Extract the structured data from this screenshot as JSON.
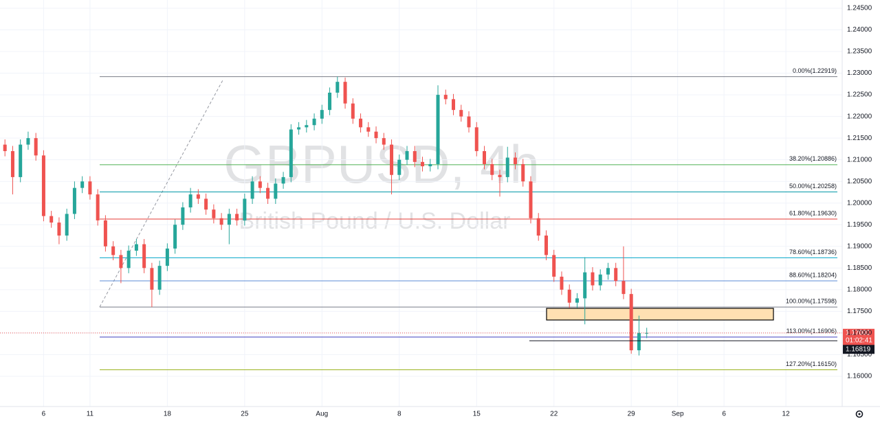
{
  "chart_data": {
    "type": "candlestick",
    "watermark": "GBPUSD, 4h",
    "description": "British Pound / U.S. Dollar",
    "up_color": "#26a69a",
    "down_color": "#ef5350",
    "grid": true,
    "xlim": [
      -5.82,
      48.64
    ],
    "xticks": [
      {
        "value": -3,
        "label": "6"
      },
      {
        "value": 0,
        "label": "11"
      },
      {
        "value": 5,
        "label": "18"
      },
      {
        "value": 10,
        "label": "25"
      },
      {
        "value": 15,
        "label": "Aug"
      },
      {
        "value": 20,
        "label": "8"
      },
      {
        "value": 25,
        "label": "15"
      },
      {
        "value": 30,
        "label": "22"
      },
      {
        "value": 35,
        "label": "29"
      },
      {
        "value": 38,
        "label": "Sep"
      },
      {
        "value": 41,
        "label": "6"
      },
      {
        "value": 45,
        "label": "12"
      }
    ],
    "ylim": [
      1.15333,
      1.2469
    ],
    "yticks": [
      {
        "value": 1.16,
        "label": "1.16000"
      },
      {
        "value": 1.165,
        "label": "1.16500"
      },
      {
        "value": 1.17,
        "label": "1.17000"
      },
      {
        "value": 1.175,
        "label": "1.17500"
      },
      {
        "value": 1.18,
        "label": "1.18000"
      },
      {
        "value": 1.185,
        "label": "1.18500"
      },
      {
        "value": 1.19,
        "label": "1.19000"
      },
      {
        "value": 1.195,
        "label": "1.19500"
      },
      {
        "value": 1.2,
        "label": "1.20000"
      },
      {
        "value": 1.205,
        "label": "1.20500"
      },
      {
        "value": 1.21,
        "label": "1.21000"
      },
      {
        "value": 1.215,
        "label": "1.21500"
      },
      {
        "value": 1.22,
        "label": "1.22000"
      },
      {
        "value": 1.225,
        "label": "1.22500"
      },
      {
        "value": 1.23,
        "label": "1.23000"
      },
      {
        "value": 1.235,
        "label": "1.23500"
      },
      {
        "value": 1.24,
        "label": "1.24000"
      },
      {
        "value": 1.245,
        "label": "1.24500"
      }
    ],
    "x": [
      -5.5,
      -5,
      -4.5,
      -4,
      -3.5,
      -3,
      -2.5,
      -2,
      -1.5,
      -1,
      -0.5,
      0,
      0.5,
      1,
      1.5,
      2,
      2.5,
      3,
      3.5,
      4,
      4.5,
      5,
      5.5,
      6,
      6.5,
      7,
      7.5,
      8,
      8.5,
      9,
      9.5,
      10,
      10.5,
      11,
      11.5,
      12,
      12.5,
      13,
      13.5,
      14,
      14.5,
      15,
      15.5,
      16,
      16.5,
      17,
      17.5,
      18,
      18.5,
      19,
      19.5,
      20,
      20.5,
      21,
      21.5,
      22,
      22.5,
      23,
      23.5,
      24,
      24.5,
      25,
      25.5,
      26,
      26.5,
      27,
      27.5,
      28,
      28.5,
      29,
      29.5,
      30,
      30.5,
      31,
      31.5,
      32,
      32.5,
      33,
      33.5,
      34,
      34.5,
      35,
      35.5,
      36
    ],
    "open": [
      1.2135,
      1.212,
      1.206,
      1.2135,
      1.215,
      1.211,
      1.197,
      1.1955,
      1.1925,
      1.1975,
      1.2035,
      1.205,
      1.202,
      1.196,
      1.19,
      1.188,
      1.185,
      1.189,
      1.1905,
      1.185,
      1.18,
      1.1855,
      1.1895,
      1.195,
      1.199,
      1.202,
      1.201,
      1.1985,
      1.1965,
      1.195,
      1.1975,
      1.196,
      1.201,
      1.205,
      1.2035,
      1.201,
      1.2045,
      1.206,
      1.217,
      1.2175,
      1.218,
      1.2195,
      1.2215,
      1.2255,
      1.228,
      1.223,
      1.2195,
      1.2175,
      1.2165,
      1.215,
      1.2135,
      1.2065,
      1.21,
      1.212,
      1.2095,
      1.2085,
      1.209,
      1.225,
      1.224,
      1.2215,
      1.22,
      1.2175,
      1.212,
      1.209,
      1.2065,
      1.206,
      1.2105,
      1.209,
      1.205,
      1.1965,
      1.1925,
      1.188,
      1.183,
      1.18,
      1.177,
      1.178,
      1.184,
      1.181,
      1.1835,
      1.185,
      1.182,
      1.179,
      1.166,
      1.17
    ],
    "high": [
      1.2147,
      1.2132,
      1.2147,
      1.2165,
      1.2162,
      1.2122,
      1.1982,
      1.1967,
      1.1987,
      1.205,
      1.2062,
      1.2062,
      1.2032,
      1.1972,
      1.1912,
      1.1892,
      1.1902,
      1.1917,
      1.1917,
      1.1862,
      1.1867,
      1.1907,
      1.1962,
      1.2002,
      1.2035,
      1.2032,
      1.2022,
      1.1997,
      1.1977,
      1.1987,
      1.1987,
      1.2022,
      1.2062,
      1.2062,
      1.2047,
      1.2057,
      1.2072,
      1.2182,
      1.2187,
      1.2192,
      1.2207,
      1.2227,
      1.2267,
      1.2292,
      1.229,
      1.2242,
      1.2207,
      1.2187,
      1.2177,
      1.2162,
      1.2147,
      1.2112,
      1.2132,
      1.2132,
      1.2107,
      1.2102,
      1.2272,
      1.2262,
      1.2252,
      1.2227,
      1.2212,
      1.2187,
      1.2132,
      1.2102,
      1.2077,
      1.213,
      1.2117,
      1.2102,
      1.2062,
      1.1977,
      1.1937,
      1.1892,
      1.1842,
      1.1812,
      1.1792,
      1.1875,
      1.1852,
      1.1847,
      1.1862,
      1.1862,
      1.19,
      1.1802,
      1.174,
      1.1712
    ],
    "low": [
      1.2108,
      1.202,
      1.2048,
      1.2123,
      1.2098,
      1.1958,
      1.1943,
      1.1905,
      1.1913,
      1.1963,
      1.2023,
      1.2008,
      1.1948,
      1.1888,
      1.1868,
      1.1815,
      1.1838,
      1.1878,
      1.1838,
      1.176,
      1.1788,
      1.1843,
      1.1883,
      1.1938,
      1.1978,
      1.1998,
      1.1973,
      1.1953,
      1.1938,
      1.1905,
      1.1948,
      1.1948,
      1.1998,
      1.2023,
      1.1998,
      1.1998,
      1.2033,
      1.2048,
      1.2158,
      1.2163,
      1.2168,
      1.2183,
      1.2203,
      1.2243,
      1.2218,
      1.2183,
      1.2163,
      1.2153,
      1.2138,
      1.2123,
      1.202,
      1.2053,
      1.2088,
      1.2083,
      1.2073,
      1.2073,
      1.2078,
      1.2228,
      1.2203,
      1.2188,
      1.2163,
      1.2108,
      1.2078,
      1.2053,
      1.2015,
      1.2048,
      1.2078,
      1.2038,
      1.1953,
      1.1913,
      1.1868,
      1.1818,
      1.1788,
      1.1758,
      1.1758,
      1.172,
      1.1798,
      1.1798,
      1.1823,
      1.1808,
      1.1778,
      1.1652,
      1.1648,
      1.1688
    ],
    "close": [
      1.212,
      1.206,
      1.2135,
      1.215,
      1.211,
      1.197,
      1.1955,
      1.1925,
      1.1975,
      1.2035,
      1.205,
      1.202,
      1.196,
      1.19,
      1.188,
      1.185,
      1.189,
      1.1905,
      1.185,
      1.18,
      1.1855,
      1.1895,
      1.195,
      1.199,
      1.202,
      1.201,
      1.1985,
      1.1965,
      1.195,
      1.1975,
      1.196,
      1.201,
      1.205,
      1.2035,
      1.201,
      1.2045,
      1.206,
      1.217,
      1.2175,
      1.218,
      1.2195,
      1.2215,
      1.2255,
      1.228,
      1.223,
      1.2195,
      1.2175,
      1.2165,
      1.215,
      1.2135,
      1.2065,
      1.21,
      1.212,
      1.2095,
      1.2085,
      1.209,
      1.225,
      1.224,
      1.2215,
      1.22,
      1.2175,
      1.212,
      1.209,
      1.2065,
      1.206,
      1.2105,
      1.209,
      1.205,
      1.1965,
      1.1925,
      1.188,
      1.183,
      1.18,
      1.177,
      1.178,
      1.184,
      1.181,
      1.1835,
      1.185,
      1.182,
      1.179,
      1.166,
      1.17,
      1.17
    ],
    "fib_levels": [
      {
        "label": "0.00%(1.22919)",
        "price": 1.22919,
        "color": "#787b86"
      },
      {
        "label": "38.20%(1.20886)",
        "price": 1.20886,
        "color": "#4caf50"
      },
      {
        "label": "50.00%(1.20258)",
        "price": 1.20258,
        "color": "#0097a7"
      },
      {
        "label": "61.80%(1.19630)",
        "price": 1.1963,
        "color": "#e53935"
      },
      {
        "label": "78.60%(1.18736)",
        "price": 1.18736,
        "color": "#00a5c8"
      },
      {
        "label": "88.60%(1.18204)",
        "price": 1.18204,
        "color": "#5b8bd6"
      },
      {
        "label": "100.00%(1.17598)",
        "price": 1.17598,
        "color": "#787b86"
      },
      {
        "label": "113.00%(1.16906)",
        "price": 1.16906,
        "color": "#3f3fbf"
      },
      {
        "label": "127.20%(1.16150)",
        "price": 1.1615,
        "color": "#9ab21e"
      }
    ],
    "last_price": 1.17001,
    "countdown": "01:02:41",
    "line_price": 1.16819
  }
}
